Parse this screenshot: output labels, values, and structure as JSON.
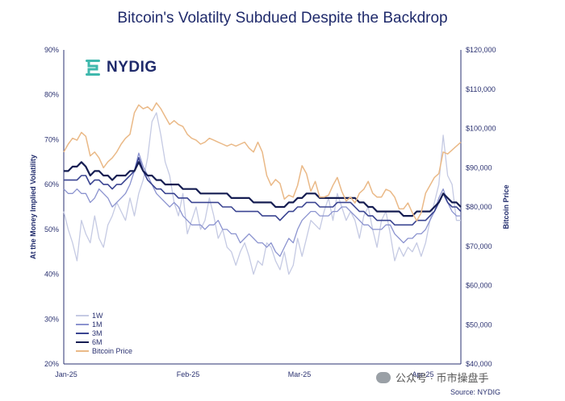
{
  "title": "Bitcoin's Volatilty Subdued Despite the Backdrop",
  "logo_text": "NYDIG",
  "source": "Source: NYDIG",
  "watermark": "公众号 · 币市操盘手",
  "chart_data": {
    "type": "line",
    "title": "Bitcoin's Volatilty Subdued Despite the Backdrop",
    "ylabel": "At the Money Implied Volatility",
    "y2label": "Bitcoin Price",
    "ylim": [
      20,
      90
    ],
    "y2lim": [
      40000,
      120000
    ],
    "x_ticks": [
      "Jan-25",
      "Feb-25",
      "Mar-25",
      "Apr-25"
    ],
    "y_ticks": [
      "20%",
      "30%",
      "40%",
      "50%",
      "60%",
      "70%",
      "80%",
      "90%"
    ],
    "y2_ticks": [
      "$40,000",
      "$50,000",
      "$60,000",
      "$70,000",
      "$80,000",
      "$90,000",
      "$100,000",
      "$110,000",
      "$120,000"
    ],
    "grid": false,
    "legend_position": "bottom-left",
    "series": [
      {
        "name": "1W",
        "axis": "left",
        "color": "#c5cae3",
        "width": 1.3,
        "values": [
          54,
          50,
          47,
          43,
          52,
          49,
          47,
          53,
          48,
          46,
          51,
          53,
          56,
          54,
          52,
          57,
          53,
          58,
          61,
          66,
          74,
          76,
          71,
          65,
          62,
          56,
          53,
          58,
          49,
          52,
          55,
          50,
          52,
          57,
          53,
          48,
          50,
          46,
          45,
          42,
          45,
          47,
          44,
          40,
          43,
          42,
          47,
          46,
          43,
          41,
          45,
          40,
          42,
          48,
          44,
          48,
          52,
          51,
          50,
          54,
          57,
          52,
          58,
          55,
          52,
          54,
          52,
          48,
          53,
          55,
          50,
          46,
          52,
          54,
          49,
          43,
          46,
          44,
          46,
          45,
          47,
          44,
          47,
          52,
          56,
          60,
          71,
          62,
          60,
          52,
          52
        ]
      },
      {
        "name": "1M",
        "axis": "left",
        "color": "#8b93cf",
        "width": 1.3,
        "values": [
          59,
          58,
          58,
          59,
          58,
          58,
          56,
          57,
          59,
          58,
          57,
          55,
          56,
          57,
          58,
          60,
          63,
          67,
          64,
          62,
          60,
          58,
          57,
          56,
          55,
          56,
          55,
          53,
          52,
          51,
          51,
          51,
          50,
          51,
          51,
          52,
          50,
          50,
          49,
          49,
          47,
          48,
          49,
          48,
          47,
          47,
          46,
          47,
          45,
          44,
          46,
          48,
          47,
          50,
          52,
          53,
          54,
          54,
          53,
          53,
          53,
          54,
          54,
          55,
          55,
          54,
          53,
          52,
          51,
          51,
          50,
          50,
          50,
          51,
          51,
          49,
          48,
          47,
          48,
          48,
          49,
          49,
          50,
          52,
          54,
          57,
          59,
          56,
          54,
          53,
          53
        ]
      },
      {
        "name": "3M",
        "axis": "left",
        "color": "#3a4491",
        "width": 1.6,
        "values": [
          61,
          61,
          61,
          61,
          62,
          62,
          60,
          61,
          61,
          60,
          60,
          59,
          60,
          60,
          61,
          62,
          63,
          66,
          63,
          61,
          60,
          59,
          59,
          58,
          58,
          58,
          57,
          57,
          57,
          56,
          56,
          56,
          56,
          56,
          56,
          56,
          55,
          55,
          55,
          54,
          54,
          54,
          54,
          54,
          54,
          53,
          53,
          53,
          53,
          52,
          53,
          54,
          54,
          55,
          55,
          56,
          56,
          56,
          55,
          55,
          55,
          55,
          56,
          56,
          56,
          56,
          55,
          54,
          54,
          53,
          53,
          52,
          52,
          52,
          52,
          51,
          51,
          51,
          51,
          51,
          52,
          52,
          52,
          53,
          54,
          56,
          58,
          56,
          55,
          55,
          54
        ]
      },
      {
        "name": "6M",
        "axis": "left",
        "color": "#151d52",
        "width": 2.2,
        "values": [
          63,
          63,
          64,
          64,
          65,
          64,
          62,
          63,
          63,
          62,
          62,
          61,
          62,
          62,
          62,
          63,
          63,
          65,
          63,
          62,
          62,
          61,
          61,
          60,
          60,
          60,
          60,
          59,
          59,
          59,
          59,
          58,
          58,
          58,
          58,
          58,
          58,
          58,
          57,
          57,
          57,
          57,
          57,
          56,
          56,
          56,
          56,
          56,
          55,
          55,
          55,
          56,
          56,
          57,
          57,
          58,
          58,
          58,
          57,
          57,
          57,
          57,
          57,
          57,
          57,
          57,
          57,
          56,
          56,
          55,
          55,
          54,
          54,
          54,
          54,
          54,
          54,
          53,
          53,
          53,
          54,
          54,
          54,
          54,
          55,
          56,
          58,
          57,
          56,
          56,
          55
        ]
      },
      {
        "name": "Bitcoin Price",
        "axis": "right",
        "color": "#eab987",
        "width": 1.5,
        "values": [
          94000,
          96000,
          97500,
          97000,
          99000,
          98000,
          93000,
          94000,
          92500,
          90000,
          91500,
          92500,
          94000,
          96000,
          97500,
          98500,
          104000,
          106000,
          105000,
          105500,
          104500,
          106500,
          105000,
          103000,
          101000,
          102000,
          101000,
          100500,
          98500,
          97500,
          97000,
          96000,
          96500,
          97500,
          97000,
          96500,
          96000,
          95500,
          96000,
          95500,
          96000,
          96500,
          95000,
          94000,
          96500,
          94000,
          88000,
          85500,
          87000,
          86000,
          82000,
          83000,
          82500,
          85500,
          90500,
          88500,
          84000,
          86500,
          82500,
          82500,
          83000,
          85500,
          87500,
          84000,
          81500,
          82500,
          81000,
          83500,
          84500,
          86500,
          83500,
          82500,
          82500,
          84500,
          84000,
          82500,
          79500,
          79500,
          81000,
          78500,
          76500,
          78500,
          83500,
          85500,
          87500,
          88500,
          94000,
          93500,
          94500,
          95500,
          96500
        ]
      }
    ]
  }
}
